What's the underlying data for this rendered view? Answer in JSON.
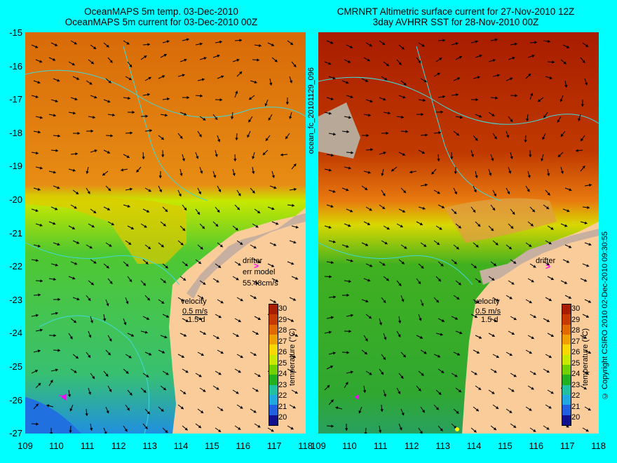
{
  "titles": {
    "left_line1": "OceanMAPS 5m temp. 03-Dec-2010",
    "left_line2": "OceanMAPS 5m current for 03-Dec-2010 00Z",
    "right_line1": "CMRNRT Altimetric surface current for 27-Nov-2010 12Z",
    "right_line2": "3day AVHRR SST for 28-Nov-2010 00Z"
  },
  "axes": {
    "y_ticks": [
      "-15",
      "-16",
      "-17",
      "-18",
      "-19",
      "-20",
      "-21",
      "-22",
      "-23",
      "-24",
      "-25",
      "-26",
      "-27"
    ],
    "x_ticks": [
      "109",
      "110",
      "111",
      "112",
      "113",
      "114",
      "115",
      "116",
      "117",
      "118"
    ]
  },
  "side_labels": {
    "middle": "ocean_fc_20101129_096",
    "right": "© Copyright CSIRO 2010  02-Dec-2010 09:30:55"
  },
  "annotations": {
    "drifter": "drifter",
    "err_model": "err model",
    "err_value": "55.48cm/s",
    "velocity": "velocity",
    "velocity_scale": "0.5 m/s",
    "velocity_days": "1.5 d"
  },
  "colorbar": {
    "title": "temperature (°C)",
    "ticks": [
      "30",
      "29",
      "28",
      "27",
      "26",
      "25",
      "24",
      "23",
      "22",
      "21",
      "20"
    ],
    "colors": [
      "#a81c00",
      "#c63a00",
      "#e06a00",
      "#f0a000",
      "#f8d800",
      "#c8e800",
      "#70d000",
      "#20b020",
      "#20c0a0",
      "#20a8e0",
      "#2060e0",
      "#101090"
    ]
  },
  "map_colors": {
    "land": "#f9cc9a",
    "coast": "#c8b8a8",
    "marker": "#ff00ff"
  }
}
